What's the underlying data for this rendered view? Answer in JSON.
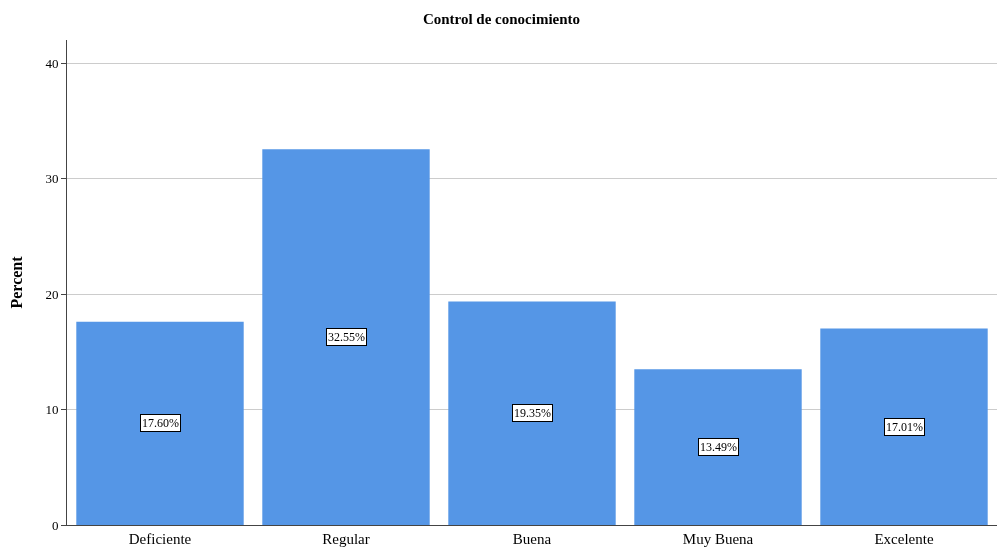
{
  "chart_data": {
    "type": "bar",
    "title": "Control de conocimiento",
    "ylabel": "Percent",
    "categories": [
      "Deficiente",
      "Regular",
      "Buena",
      "Muy Buena",
      "Excelente"
    ],
    "values": [
      17.6,
      32.55,
      19.35,
      13.49,
      17.01
    ],
    "value_labels": [
      "17.60%",
      "32.55%",
      "19.35%",
      "13.49%",
      "17.01%"
    ],
    "color": "#5596e6",
    "ylim": [
      0,
      42
    ],
    "yticks": [
      0,
      10,
      20,
      30,
      40
    ],
    "grid": "y"
  }
}
